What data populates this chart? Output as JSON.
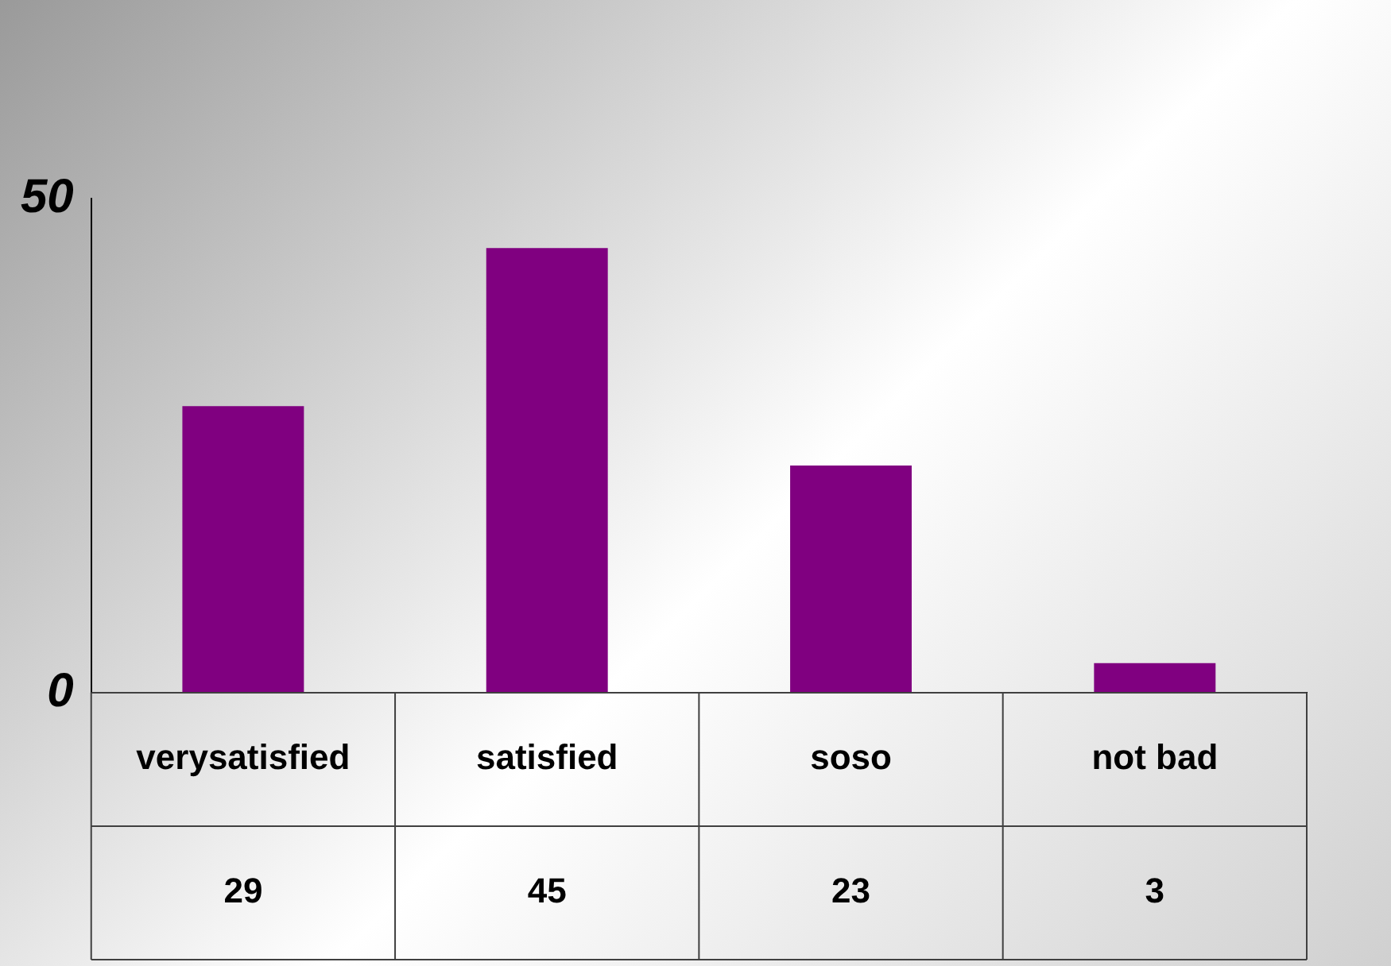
{
  "chart_data": {
    "type": "bar",
    "categories": [
      "verysatisfied",
      "satisfied",
      "soso",
      "not bad"
    ],
    "values": [
      29,
      45,
      23,
      3
    ],
    "color": "#800080",
    "ylim": [
      0,
      50
    ],
    "yticks": [
      0,
      50
    ],
    "data_labels": true
  }
}
